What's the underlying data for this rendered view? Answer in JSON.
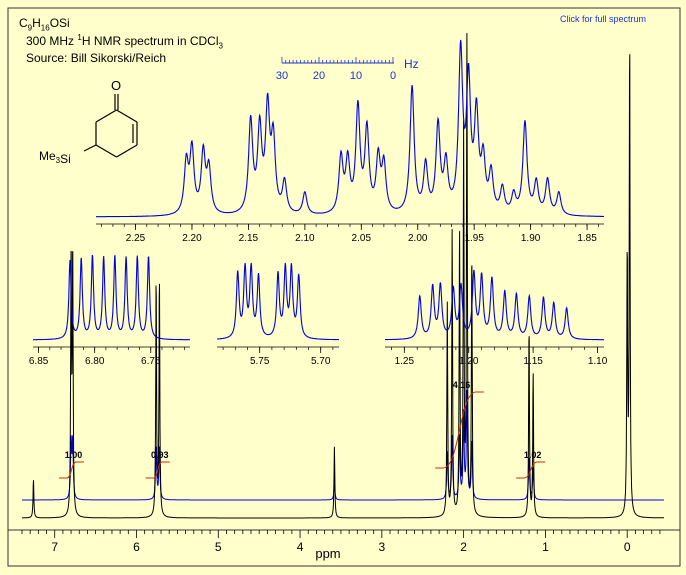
{
  "header": {
    "link_text": "Click for full spectrum",
    "formula": "C9H16OSi",
    "formula_parts": [
      [
        "C",
        ""
      ],
      [
        "9",
        "sub"
      ],
      [
        "H",
        ""
      ],
      [
        "16",
        "sub"
      ],
      [
        "OSi",
        ""
      ]
    ],
    "title_prefix": "300 MHz ",
    "title_sup": "1",
    "title_mid": "H NMR spectrum in CDCl",
    "title_sub": "3",
    "source": "Source: Bill Sikorski/Reich"
  },
  "structure": {
    "carbonyl_label": "O",
    "substituent_label": "Me3Si",
    "substituent_parts": [
      [
        "Me",
        ""
      ],
      [
        "3",
        "sub"
      ],
      [
        "Si",
        ""
      ]
    ]
  },
  "hz_scale": {
    "label": "Hz",
    "ticks": [
      "30",
      "20",
      "10",
      "0"
    ]
  },
  "colors": {
    "background": "#ffffcc",
    "spectrum": "#0000dd",
    "integral": "#c03000",
    "baseline_trace": "#000000",
    "link": "#1a33d6"
  },
  "chart_data": [
    {
      "type": "line",
      "name": "main-spectrum",
      "xlabel": "ppm",
      "xlim": [
        7.4,
        -0.45
      ],
      "x_ticks": [
        7,
        6,
        5,
        4,
        3,
        2,
        1,
        0
      ],
      "grid": false,
      "peaks": [
        {
          "ppm": 7.26,
          "height": 0.08
        },
        {
          "ppm": 6.8,
          "height": 0.55
        },
        {
          "ppm": 6.78,
          "height": 0.55
        },
        {
          "ppm": 5.76,
          "height": 0.5
        },
        {
          "ppm": 5.72,
          "height": 0.5
        },
        {
          "ppm": 3.58,
          "height": 0.15
        },
        {
          "ppm": 2.2,
          "height": 0.45
        },
        {
          "ppm": 2.14,
          "height": 0.6
        },
        {
          "ppm": 2.05,
          "height": 0.6
        },
        {
          "ppm": 2.0,
          "height": 0.8
        },
        {
          "ppm": 1.96,
          "height": 1.0
        },
        {
          "ppm": 1.9,
          "height": 0.55
        },
        {
          "ppm": 1.2,
          "height": 0.4
        },
        {
          "ppm": 1.15,
          "height": 0.3
        },
        {
          "ppm": 0.0,
          "height": 0.55
        },
        {
          "ppm": -0.03,
          "height": 1.0
        }
      ],
      "integrals": [
        {
          "label": "1.00",
          "from": 6.85,
          "to": 6.74
        },
        {
          "label": "0.93",
          "from": 5.79,
          "to": 5.69
        },
        {
          "label": "4.16",
          "from": 2.25,
          "to": 1.85
        },
        {
          "label": "1.02",
          "from": 1.26,
          "to": 1.1
        }
      ]
    },
    {
      "type": "line",
      "name": "inset-aliphatic",
      "xlim": [
        2.285,
        1.835
      ],
      "x_ticks": [
        2.25,
        2.2,
        2.15,
        2.1,
        2.05,
        2.0,
        1.95,
        1.9,
        1.85
      ],
      "x_tick_labels": [
        "2.25",
        "2.20",
        "2.15",
        "2.10",
        "2.05",
        "2.00",
        "1.95",
        "1.90",
        "1.85"
      ],
      "peaks": [
        {
          "ppm": 2.205,
          "height": 0.32
        },
        {
          "ppm": 2.2,
          "height": 0.4
        },
        {
          "ppm": 2.19,
          "height": 0.38
        },
        {
          "ppm": 2.185,
          "height": 0.28
        },
        {
          "ppm": 2.148,
          "height": 0.58
        },
        {
          "ppm": 2.14,
          "height": 0.52
        },
        {
          "ppm": 2.133,
          "height": 0.64
        },
        {
          "ppm": 2.128,
          "height": 0.45
        },
        {
          "ppm": 2.118,
          "height": 0.2
        },
        {
          "ppm": 2.1,
          "height": 0.14
        },
        {
          "ppm": 2.068,
          "height": 0.35
        },
        {
          "ppm": 2.062,
          "height": 0.32
        },
        {
          "ppm": 2.053,
          "height": 0.66
        },
        {
          "ppm": 2.045,
          "height": 0.52
        },
        {
          "ppm": 2.035,
          "height": 0.34
        },
        {
          "ppm": 2.03,
          "height": 0.3
        },
        {
          "ppm": 2.005,
          "height": 0.8
        },
        {
          "ppm": 1.993,
          "height": 0.3
        },
        {
          "ppm": 1.982,
          "height": 0.55
        },
        {
          "ppm": 1.975,
          "height": 0.3
        },
        {
          "ppm": 1.962,
          "height": 1.0
        },
        {
          "ppm": 1.955,
          "height": 0.8
        },
        {
          "ppm": 1.948,
          "height": 0.6
        },
        {
          "ppm": 1.942,
          "height": 0.32
        },
        {
          "ppm": 1.935,
          "height": 0.25
        },
        {
          "ppm": 1.925,
          "height": 0.16
        },
        {
          "ppm": 1.915,
          "height": 0.12
        },
        {
          "ppm": 1.905,
          "height": 0.58
        },
        {
          "ppm": 1.895,
          "height": 0.2
        },
        {
          "ppm": 1.885,
          "height": 0.22
        },
        {
          "ppm": 1.875,
          "height": 0.14
        }
      ]
    },
    {
      "type": "line",
      "name": "inset-6.8",
      "xlim": [
        6.855,
        6.715
      ],
      "x_ticks": [
        6.85,
        6.8,
        6.75
      ],
      "x_tick_labels": [
        "6.85",
        "6.80",
        "6.75"
      ],
      "peaks": [
        {
          "ppm": 6.822,
          "height": 0.95
        },
        {
          "ppm": 6.812,
          "height": 0.97
        },
        {
          "ppm": 6.802,
          "height": 1.0
        },
        {
          "ppm": 6.792,
          "height": 0.98
        },
        {
          "ppm": 6.782,
          "height": 1.0
        },
        {
          "ppm": 6.772,
          "height": 0.98
        },
        {
          "ppm": 6.762,
          "height": 0.99
        },
        {
          "ppm": 6.752,
          "height": 1.0
        }
      ]
    },
    {
      "type": "line",
      "name": "inset-5.7",
      "xlim": [
        5.785,
        5.685
      ],
      "x_ticks": [
        5.75,
        5.7
      ],
      "x_tick_labels": [
        "5.75",
        "5.70"
      ],
      "peaks": [
        {
          "ppm": 5.768,
          "height": 0.95
        },
        {
          "ppm": 5.762,
          "height": 1.0
        },
        {
          "ppm": 5.757,
          "height": 1.0
        },
        {
          "ppm": 5.751,
          "height": 0.9
        },
        {
          "ppm": 5.735,
          "height": 0.93
        },
        {
          "ppm": 5.729,
          "height": 1.0
        },
        {
          "ppm": 5.724,
          "height": 1.0
        },
        {
          "ppm": 5.718,
          "height": 0.9
        }
      ]
    },
    {
      "type": "line",
      "name": "inset-1.2",
      "xlim": [
        1.265,
        1.095
      ],
      "x_ticks": [
        1.25,
        1.2,
        1.15,
        1.1
      ],
      "x_tick_labels": [
        "1.25",
        "1.20",
        "1.15",
        "1.10"
      ],
      "peaks": [
        {
          "ppm": 1.238,
          "height": 0.66
        },
        {
          "ppm": 1.228,
          "height": 0.8
        },
        {
          "ppm": 1.222,
          "height": 0.82
        },
        {
          "ppm": 1.212,
          "height": 0.76
        },
        {
          "ppm": 1.206,
          "height": 0.8
        },
        {
          "ppm": 1.196,
          "height": 1.0
        },
        {
          "ppm": 1.19,
          "height": 0.95
        },
        {
          "ppm": 1.182,
          "height": 0.92
        },
        {
          "ppm": 1.172,
          "height": 0.72
        },
        {
          "ppm": 1.163,
          "height": 0.68
        },
        {
          "ppm": 1.153,
          "height": 0.65
        },
        {
          "ppm": 1.142,
          "height": 0.63
        },
        {
          "ppm": 1.134,
          "height": 0.55
        },
        {
          "ppm": 1.124,
          "height": 0.48
        }
      ]
    }
  ]
}
